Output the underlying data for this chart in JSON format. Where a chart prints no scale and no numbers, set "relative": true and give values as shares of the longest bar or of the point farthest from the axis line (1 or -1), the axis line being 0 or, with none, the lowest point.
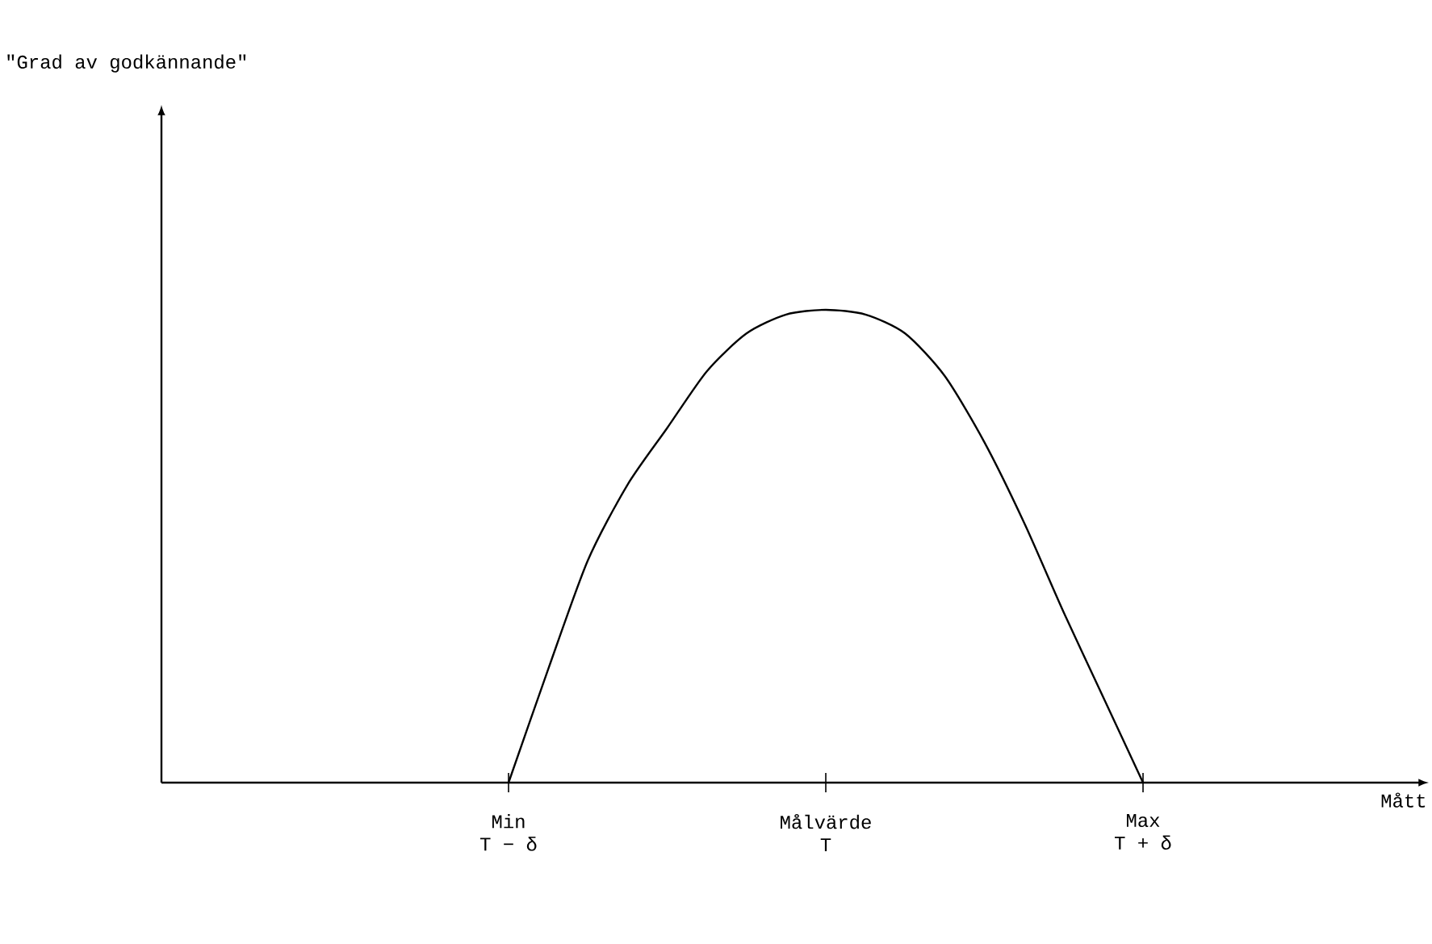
{
  "chart_data": {
    "type": "line",
    "relative": true,
    "tick_labels": "x",
    "annotations": [
      "\"Grad av godkännande\"",
      "Mått"
    ],
    "categories": [
      "Min\nT − δ",
      null,
      null,
      null,
      null,
      null,
      null,
      null,
      "Målvärde\nT",
      null,
      null,
      null,
      null,
      null,
      null,
      null,
      "Max\nT + δ"
    ],
    "series": [
      {
        "color": "#000000",
        "values": [
          0,
          0.24,
          0.47,
          0.63,
          0.75,
          0.87,
          0.95,
          0.99,
          1,
          0.99,
          0.95,
          0.86,
          0.72,
          0.55,
          0.36,
          0.18,
          0
        ]
      }
    ]
  }
}
